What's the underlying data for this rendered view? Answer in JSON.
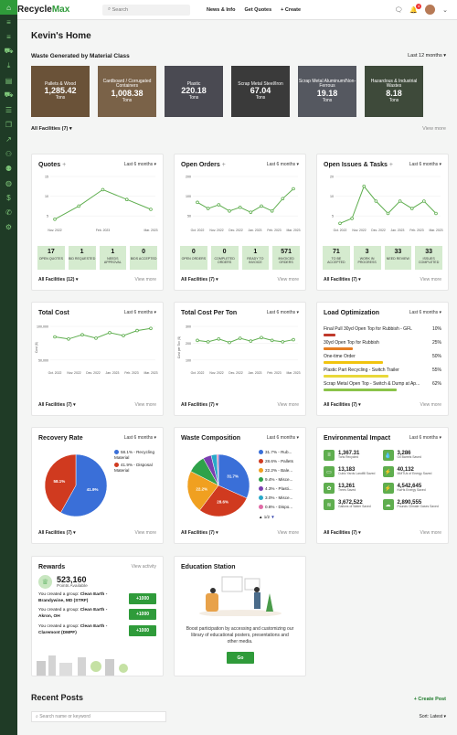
{
  "app": {
    "brand_a": "Recycle",
    "brand_b": "Max",
    "search_placeholder": "Search",
    "nav": [
      "News & Info",
      "Get Quotes",
      "+ Create"
    ],
    "badge": "4"
  },
  "page_title": "Kevin's Home",
  "waste": {
    "title": "Waste Generated by Material Class",
    "period": "Last 12 months ▾",
    "facilities": "All Facilities (7) ▾",
    "view_more": "View more",
    "tiles": [
      {
        "name": "Pallets & Wood",
        "value": "1,285.42",
        "unit": "Tons"
      },
      {
        "name": "Cardboard / Corrugated Containers",
        "value": "1,008.38",
        "unit": "Tons"
      },
      {
        "name": "Plastic",
        "value": "220.18",
        "unit": "Tons"
      },
      {
        "name": "Scrap Metal Steel/Iron",
        "value": "67.04",
        "unit": "Tons"
      },
      {
        "name": "Scrap Metal Aluminum/Non-Ferrous",
        "value": "19.18",
        "unit": "Tons"
      },
      {
        "name": "Hazardous & Industrial Wastes",
        "value": "8.18",
        "unit": "Tons"
      }
    ]
  },
  "quotes": {
    "title": "Quotes",
    "period": "Last 6 months ▾",
    "footer": "All Facilities (12) ▾",
    "view_more": "View more",
    "stats": [
      {
        "v": "17",
        "l": "OPEN QUOTES"
      },
      {
        "v": "1",
        "l": "BID REQUESTED"
      },
      {
        "v": "1",
        "l": "NEEDS APPROVAL"
      },
      {
        "v": "0",
        "l": "BIDS ACCEPTED"
      }
    ]
  },
  "orders": {
    "title": "Open Orders",
    "period": "Last 6 months ▾",
    "footer": "All Facilities (7) ▾",
    "view_more": "View more",
    "stats": [
      {
        "v": "0",
        "l": "OPEN ORDERS"
      },
      {
        "v": "0",
        "l": "COMPLETED ORDERS"
      },
      {
        "v": "1",
        "l": "READY TO INVOICE"
      },
      {
        "v": "571",
        "l": "INVOICED ORDERS"
      }
    ]
  },
  "issues": {
    "title": "Open Issues & Tasks",
    "period": "Last 6 months ▾",
    "footer": "All Facilities (7) ▾",
    "view_more": "View more",
    "stats": [
      {
        "v": "71",
        "l": "TO BE ACCEPTED"
      },
      {
        "v": "3",
        "l": "WORK IN PROGRESS"
      },
      {
        "v": "33",
        "l": "NEED REVIEW"
      },
      {
        "v": "33",
        "l": "ISSUES COMPLETED"
      }
    ]
  },
  "total_cost": {
    "title": "Total Cost",
    "period": "Last 6 months ▾",
    "footer": "All Facilities (7) ▾",
    "view_more": "View more"
  },
  "cost_ton": {
    "title": "Total Cost Per Ton",
    "period": "Last 6 months ▾",
    "footer": "All Facilities (7) ▾",
    "view_more": "View more"
  },
  "load": {
    "title": "Load Optimization",
    "period": "Last 6 months ▾",
    "footer": "All Facilities (7) ▾",
    "view_more": "View more",
    "rows": [
      {
        "name": "Final Pull 30yd Open Top for Rubbish - GFL",
        "pct": "10%",
        "frac": 0.1,
        "color": "#c0392b"
      },
      {
        "name": "30yd Open Top for Rubbish",
        "pct": "25%",
        "frac": 0.25,
        "color": "#e67e22"
      },
      {
        "name": "One-time Order",
        "pct": "50%",
        "frac": 0.5,
        "color": "#f1c40f"
      },
      {
        "name": "Plastic Part Recycling - Switch Trailer",
        "pct": "55%",
        "frac": 0.55,
        "color": "#e9d83a"
      },
      {
        "name": "Scrap Metal Open Top - Switch & Dump at Ap...",
        "pct": "62%",
        "frac": 0.62,
        "color": "#8bc34a"
      }
    ]
  },
  "recovery": {
    "title": "Recovery Rate",
    "period": "Last 6 months ▾",
    "footer": "All Facilities (7) ▾",
    "view_more": "View more",
    "legend": [
      "58.1% - Recycling Material",
      "41.9% - Disposal Material"
    ],
    "labels": [
      "41.9%",
      "58.1%"
    ]
  },
  "composition": {
    "title": "Waste Composition",
    "period": "Last 6 months ▾",
    "footer": "All Facilities (7) ▾",
    "view_more": "View more",
    "legend": [
      "31.7% - Rub...",
      "28.6% - Pallets",
      "22.2% - Bale...",
      "9.4% - Misce...",
      "4.3% - Plasti...",
      "3.0% - Misce...",
      "0.8% - Dispo..."
    ],
    "pager": "1/2",
    "labels": [
      "31.7%",
      "28.6%",
      "22.2%"
    ]
  },
  "env": {
    "title": "Environmental Impact",
    "period": "Last 6 months ▾",
    "footer": "All Facilities (7) ▾",
    "view_more": "View more",
    "items": [
      {
        "v": "1,367.31",
        "l": "Tons Recycled"
      },
      {
        "v": "3,286",
        "l": "Oil Barrels Saved"
      },
      {
        "v": "13,183",
        "l": "Cubic Yards Landfill Saved"
      },
      {
        "v": "40,132",
        "l": "MMTUs of Energy Saved"
      },
      {
        "v": "13,261",
        "l": "Trees Saved"
      },
      {
        "v": "4,542,645",
        "l": "KwHs Energy Saved"
      },
      {
        "v": "3,672,522",
        "l": "Gallons of Water Saved"
      },
      {
        "v": "2,890,555",
        "l": "Pounds Climate Gases Saved"
      }
    ]
  },
  "rewards": {
    "title": "Rewards",
    "view": "View activity",
    "points": "523,160",
    "points_label": "Points Available",
    "items": [
      {
        "pre": "You created a group: ",
        "b": "Clean Earth - Brandywine, MD (STRF)",
        "btn": "+1000"
      },
      {
        "pre": "You created a group: ",
        "b": "Clean Earth - Akron, OH",
        "btn": "+1000"
      },
      {
        "pre": "You created a group: ",
        "b": "Clean Earth - Claremont (DMPF)",
        "btn": "+1000"
      }
    ]
  },
  "education": {
    "title": "Education Station",
    "text": "Boost participation by accessing and customizing our library of educational posters, presentations and other media.",
    "btn": "Go"
  },
  "recent": {
    "title": "Recent Posts",
    "create": "+ Create Post",
    "search_placeholder": "Search name or keyword",
    "sort": "Sort: Latest ▾"
  },
  "chart_data": [
    {
      "type": "line",
      "title": "Quotes",
      "categories": [
        "Nov. 2022",
        "Feb. 2023",
        "Mar. 2023"
      ],
      "values": [
        2,
        11,
        6
      ],
      "ylim": [
        0,
        15
      ],
      "yticks": [
        "15",
        "10",
        "5"
      ],
      "x_ticks": [
        "Nov. 2022",
        "Feb. 2023",
        "Mar. 2023"
      ],
      "series_points": [
        2,
        6,
        11,
        8,
        5
      ]
    },
    {
      "type": "line",
      "title": "Open Orders",
      "categories": [
        "Oct. 2022",
        "Nov. 2022",
        "Dec. 2022",
        "Jan. 2023",
        "Feb. 2023",
        "Mar. 2023"
      ],
      "series_points": [
        95,
        70,
        85,
        60,
        75,
        55,
        80,
        60,
        110,
        150
      ],
      "ylim": [
        0,
        200
      ],
      "yticks": [
        "200",
        "100",
        "50"
      ]
    },
    {
      "type": "line",
      "title": "Open Issues & Tasks",
      "categories": [
        "Oct. 2022",
        "Nov. 2022",
        "Dec. 2022",
        "Jan. 2023",
        "Feb. 2023",
        "Mar. 2023"
      ],
      "series_points": [
        1,
        3,
        16,
        10,
        5,
        10,
        7,
        10,
        5
      ],
      "ylim": [
        0,
        20
      ],
      "yticks": [
        "20",
        "10",
        "5"
      ]
    },
    {
      "type": "line",
      "title": "Total Cost",
      "categories": [
        "Oct. 2022",
        "Nov. 2022",
        "Dec. 2022",
        "Jan. 2023",
        "Feb. 2023",
        "Mar. 2023"
      ],
      "series_points": [
        75000,
        70000,
        80000,
        72000,
        85000,
        78000,
        90000,
        95000
      ],
      "ylim": [
        0,
        100000
      ],
      "yticks": [
        "100,000",
        "50,000"
      ],
      "ylabel": "Cost ($)"
    },
    {
      "type": "line",
      "title": "Total Cost Per Ton",
      "categories": [
        "Oct. 2022",
        "Nov. 2022",
        "Dec. 2022",
        "Jan. 2023",
        "Feb. 2023",
        "Mar. 2023"
      ],
      "series_points": [
        200,
        190,
        210,
        185,
        215,
        195,
        220,
        200,
        190,
        205
      ],
      "ylim": [
        0,
        300
      ],
      "yticks": [
        "300",
        "200",
        "100"
      ],
      "ylabel": "Cost per Ton ($)"
    },
    {
      "type": "pie",
      "title": "Recovery Rate",
      "slices": [
        {
          "name": "Recycling Material",
          "value": 58.1,
          "color": "#3a6fd8"
        },
        {
          "name": "Disposal Material",
          "value": 41.9,
          "color": "#d03a1f"
        }
      ]
    },
    {
      "type": "pie",
      "title": "Waste Composition",
      "slices": [
        {
          "name": "Rub...",
          "value": 31.7,
          "color": "#3a6fd8"
        },
        {
          "name": "Pallets",
          "value": 28.6,
          "color": "#d03a1f"
        },
        {
          "name": "Bale...",
          "value": 22.2,
          "color": "#f0a020"
        },
        {
          "name": "Misce...",
          "value": 9.4,
          "color": "#2fa24a"
        },
        {
          "name": "Plasti...",
          "value": 4.3,
          "color": "#7a3fb0"
        },
        {
          "name": "Misce...",
          "value": 3.0,
          "color": "#29a9c9"
        },
        {
          "name": "Dispo...",
          "value": 0.8,
          "color": "#e06aa6"
        }
      ]
    }
  ]
}
